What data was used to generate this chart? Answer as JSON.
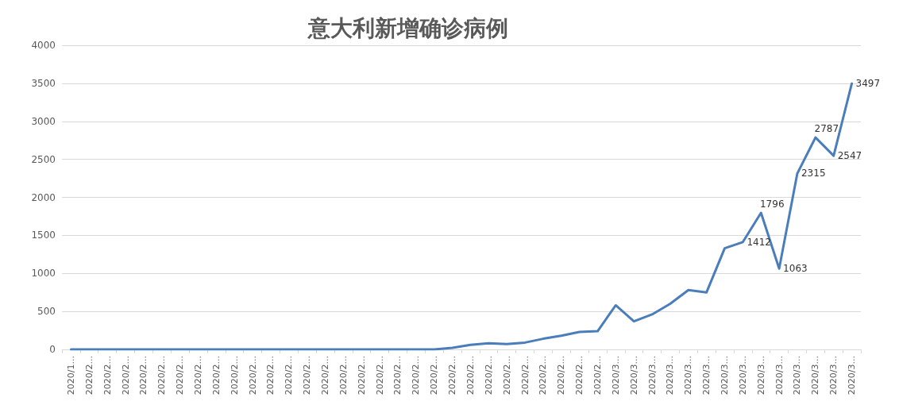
{
  "chart_data": {
    "type": "line",
    "title": "意大利新增确诊病例",
    "categories": [
      "2020/1...",
      "2020/2...",
      "2020/2...",
      "2020/2...",
      "2020/2...",
      "2020/2...",
      "2020/2...",
      "2020/2...",
      "2020/2...",
      "2020/2...",
      "2020/2...",
      "2020/2...",
      "2020/2...",
      "2020/2...",
      "2020/2...",
      "2020/2...",
      "2020/2...",
      "2020/2...",
      "2020/2...",
      "2020/2...",
      "2020/2...",
      "2020/2...",
      "2020/2...",
      "2020/2...",
      "2020/2...",
      "2020/2...",
      "2020/2...",
      "2020/2...",
      "2020/2...",
      "2020/2...",
      "2020/3...",
      "2020/3...",
      "2020/3...",
      "2020/3...",
      "2020/3...",
      "2020/3...",
      "2020/3...",
      "2020/3...",
      "2020/3...",
      "2020/3...",
      "2020/3...",
      "2020/3...",
      "2020/3...",
      "2020/3..."
    ],
    "series": [
      {
        "color": "#4a7ebb",
        "values": [
          0,
          0,
          0,
          0,
          0,
          0,
          0,
          0,
          0,
          0,
          0,
          0,
          0,
          0,
          0,
          0,
          0,
          0,
          0,
          0,
          0,
          20,
          60,
          80,
          70,
          90,
          140,
          180,
          230,
          240,
          580,
          370,
          460,
          600,
          780,
          750,
          1330,
          1412,
          1796,
          1063,
          2315,
          2787,
          2547,
          3497
        ],
        "value_labels": [
          null,
          null,
          null,
          null,
          null,
          null,
          null,
          null,
          null,
          null,
          null,
          null,
          null,
          null,
          null,
          null,
          null,
          null,
          null,
          null,
          null,
          null,
          null,
          null,
          null,
          null,
          null,
          null,
          null,
          null,
          null,
          null,
          null,
          null,
          null,
          null,
          null,
          "1412",
          "1796",
          "1063",
          "2315",
          "2787",
          "2547",
          "3497"
        ]
      }
    ],
    "ylim": [
      0,
      4000
    ],
    "yticks": [
      0,
      500,
      1000,
      1500,
      2000,
      2500,
      3000,
      3500,
      4000
    ],
    "grid": "y",
    "marker": "none",
    "line_style": "solid"
  }
}
